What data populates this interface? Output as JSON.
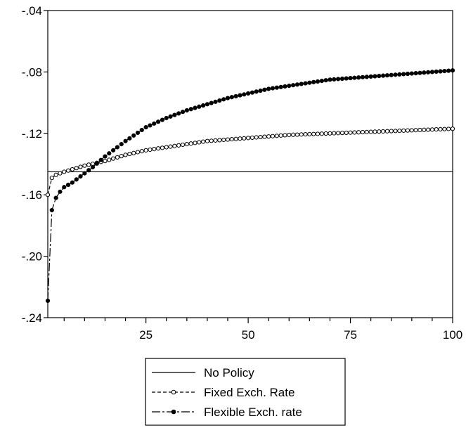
{
  "chart_data": {
    "type": "line",
    "title": "",
    "xlabel": "",
    "ylabel": "",
    "xlim": [
      1,
      100
    ],
    "ylim": [
      -0.24,
      -0.04
    ],
    "x_ticks": [
      25,
      50,
      75,
      100
    ],
    "x_tick_labels": [
      "25",
      "50",
      "75",
      "100"
    ],
    "y_ticks": [
      -0.24,
      -0.2,
      -0.16,
      -0.12,
      -0.08,
      -0.04
    ],
    "y_tick_labels": [
      "-.24",
      "-.20",
      "-.16",
      "-.12",
      "-.08",
      "-.04"
    ],
    "grid": false,
    "legend_position": "bottom-center",
    "series": [
      {
        "name": "No Policy",
        "style": "solid",
        "marker": "none",
        "x": [
          1,
          100
        ],
        "values": [
          -0.145,
          -0.145
        ]
      },
      {
        "name": "Fixed Exch. Rate",
        "style": "dashed",
        "marker": "open-circle",
        "x": [
          1,
          2,
          3,
          5,
          10,
          15,
          20,
          25,
          30,
          40,
          50,
          60,
          70,
          80,
          90,
          100
        ],
        "values": [
          -0.16,
          -0.149,
          -0.147,
          -0.145,
          -0.141,
          -0.138,
          -0.134,
          -0.131,
          -0.129,
          -0.125,
          -0.123,
          -0.121,
          -0.12,
          -0.119,
          -0.118,
          -0.117
        ]
      },
      {
        "name": "Flexible Exch. rate",
        "style": "dash-dot",
        "marker": "filled-circle",
        "x": [
          1,
          2,
          3,
          4,
          5,
          7,
          10,
          12,
          15,
          20,
          25,
          30,
          35,
          40,
          45,
          50,
          55,
          60,
          65,
          70,
          75,
          80,
          85,
          90,
          95,
          100
        ],
        "values": [
          -0.229,
          -0.17,
          -0.162,
          -0.158,
          -0.155,
          -0.152,
          -0.146,
          -0.142,
          -0.135,
          -0.125,
          -0.116,
          -0.11,
          -0.105,
          -0.101,
          -0.097,
          -0.094,
          -0.091,
          -0.089,
          -0.087,
          -0.085,
          -0.084,
          -0.083,
          -0.082,
          -0.081,
          -0.08,
          -0.079
        ]
      }
    ]
  }
}
